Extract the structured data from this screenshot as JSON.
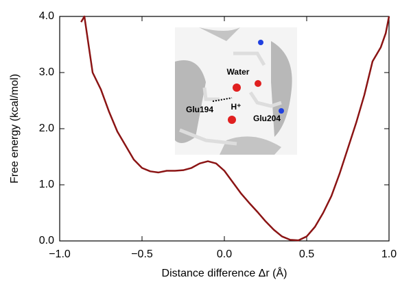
{
  "chart_data": {
    "type": "line",
    "x_label": "Distance difference Δr (Å)",
    "y_label": "Free energy (kcal/mol)",
    "xlim": [
      -1.0,
      1.0
    ],
    "ylim": [
      0.0,
      4.0
    ],
    "xticks": [
      {
        "value": -1.0,
        "label": "−1.0"
      },
      {
        "value": -0.5,
        "label": "−0.5"
      },
      {
        "value": 0,
        "label": "0.0"
      },
      {
        "value": 0.5,
        "label": "0.5"
      },
      {
        "value": 1.0,
        "label": "1.0"
      }
    ],
    "yticks": [
      {
        "value": 0,
        "label": "0.0"
      },
      {
        "value": 1,
        "label": "1.0"
      },
      {
        "value": 2,
        "label": "2.0"
      },
      {
        "value": 3,
        "label": "3.0"
      },
      {
        "value": 4,
        "label": "4.0"
      }
    ],
    "x": [
      -0.87,
      -0.85,
      -0.83,
      -0.8,
      -0.75,
      -0.7,
      -0.65,
      -0.6,
      -0.55,
      -0.5,
      -0.45,
      -0.4,
      -0.35,
      -0.3,
      -0.25,
      -0.2,
      -0.15,
      -0.1,
      -0.05,
      0.0,
      0.05,
      0.1,
      0.15,
      0.2,
      0.25,
      0.3,
      0.35,
      0.4,
      0.45,
      0.5,
      0.55,
      0.6,
      0.65,
      0.7,
      0.75,
      0.8,
      0.85,
      0.9,
      0.95,
      0.98,
      1.0
    ],
    "series": [
      {
        "color": "#8b1414",
        "values": [
          3.9,
          4.0,
          3.6,
          3.0,
          2.7,
          2.3,
          1.95,
          1.7,
          1.45,
          1.3,
          1.24,
          1.22,
          1.25,
          1.25,
          1.26,
          1.3,
          1.38,
          1.42,
          1.38,
          1.25,
          1.05,
          0.85,
          0.68,
          0.52,
          0.35,
          0.2,
          0.08,
          0.02,
          0.01,
          0.08,
          0.25,
          0.5,
          0.8,
          1.2,
          1.65,
          2.1,
          2.6,
          3.2,
          3.45,
          3.7,
          4.0
        ]
      }
    ],
    "annotations": [
      "Water",
      "Glu194",
      "H⁺",
      "Glu204"
    ]
  }
}
